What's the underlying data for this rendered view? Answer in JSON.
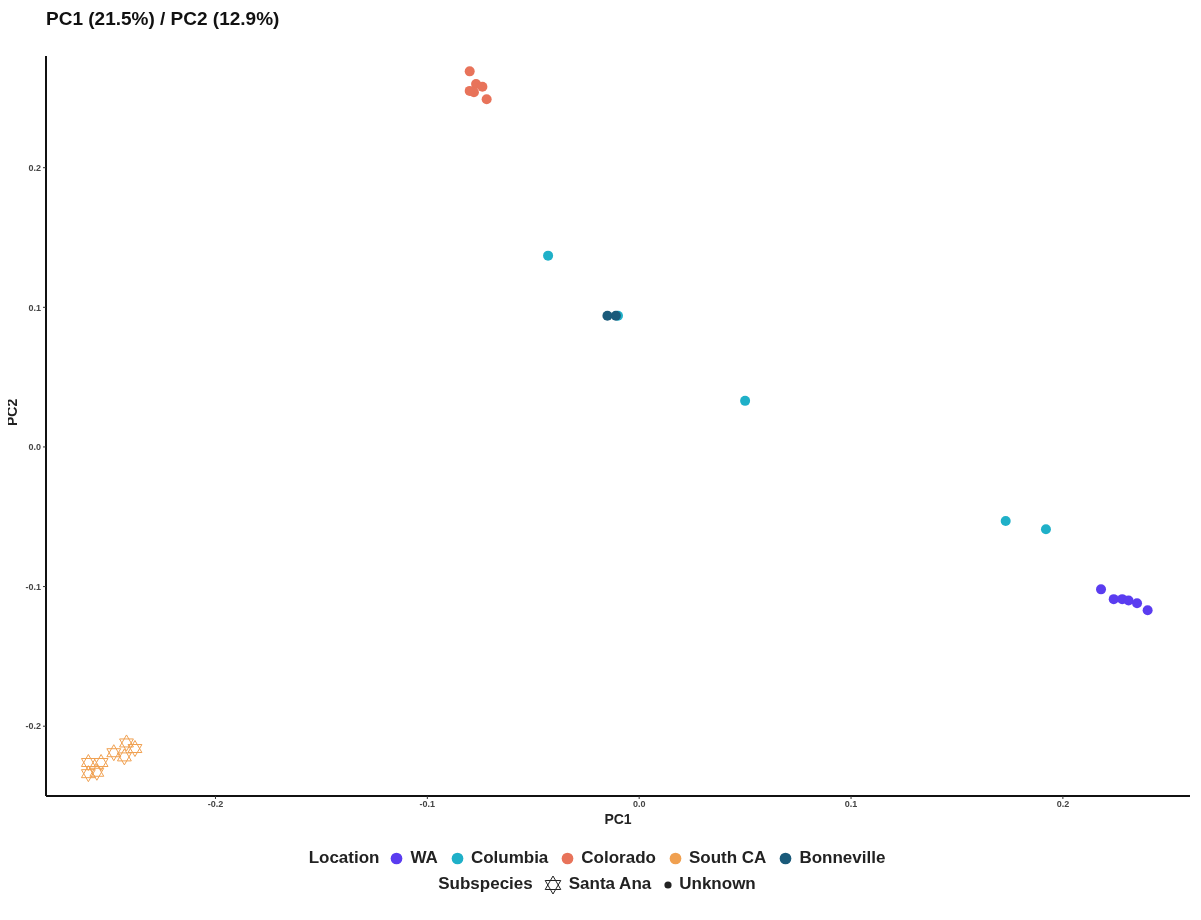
{
  "chart_data": {
    "type": "scatter",
    "title": "PC1 (21.5%) / PC2 (12.9%)",
    "xlabel": "PC1",
    "ylabel": "PC2",
    "legend_title": "Location",
    "legend": "bottom",
    "grid": false,
    "marker": "circle",
    "xlim": [
      -0.28,
      0.26
    ],
    "ylim": [
      -0.25,
      0.28
    ],
    "xticks": [
      -0.2,
      -0.1,
      {
        "value": 0,
        "label": "0.0"
      },
      0.1,
      0.2
    ],
    "yticks": [
      -0.2,
      -0.1,
      {
        "value": 0,
        "label": "0.0"
      },
      0.1,
      0.2
    ],
    "annotations": [
      "Subspecies",
      "Santa Ana",
      "Unknown"
    ],
    "series": [
      {
        "name": "WA",
        "color": "#5a3cf0",
        "x": [
          0.218,
          0.224,
          0.228,
          0.231,
          0.235,
          0.24
        ],
        "values": [
          -0.102,
          -0.109,
          -0.109,
          -0.11,
          -0.112,
          -0.117
        ]
      },
      {
        "name": "Columbia",
        "color": "#1fb0c8",
        "x": [
          -0.043,
          -0.01,
          0.05,
          0.173,
          0.192
        ],
        "values": [
          0.137,
          0.094,
          0.033,
          -0.053,
          -0.059
        ]
      },
      {
        "name": "Colorado",
        "color": "#e8735a",
        "x": [
          -0.08,
          -0.077,
          -0.078,
          -0.074,
          -0.072,
          -0.08
        ],
        "values": [
          0.269,
          0.26,
          0.254,
          0.258,
          0.249,
          0.255
        ]
      },
      {
        "name": "South CA",
        "color": "#f0a050",
        "marker": "star",
        "x": [
          -0.26,
          -0.254,
          -0.256,
          -0.248,
          -0.242,
          -0.243,
          -0.238,
          -0.26
        ],
        "values": [
          -0.226,
          -0.226,
          -0.233,
          -0.219,
          -0.212,
          -0.222,
          -0.216,
          -0.234
        ]
      },
      {
        "name": "Bonneville",
        "color": "#1a5a7a",
        "x": [
          -0.015,
          -0.011
        ],
        "values": [
          0.094,
          0.094
        ]
      }
    ]
  }
}
